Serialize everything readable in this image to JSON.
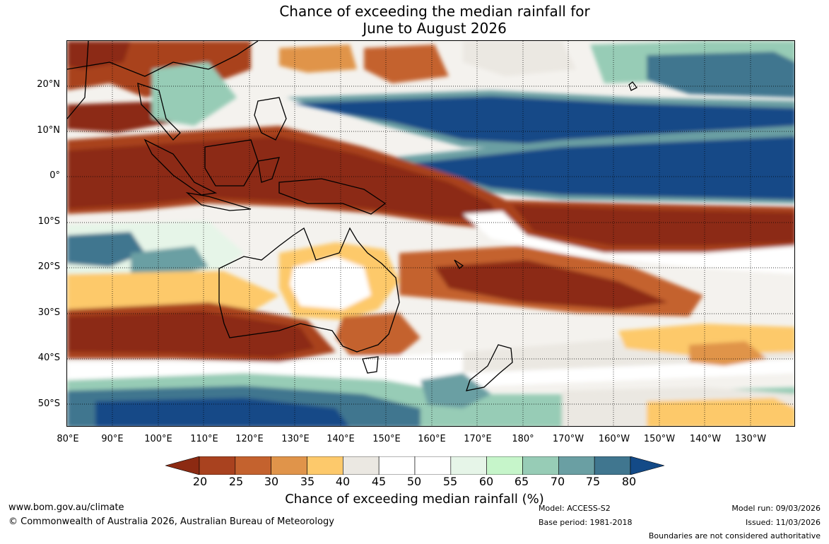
{
  "title": {
    "line1": "Chance of exceeding the median rainfall for",
    "line2": "June to August 2026"
  },
  "map": {
    "lat_labels": [
      "20°N",
      "10°N",
      "0°",
      "10°S",
      "20°S",
      "30°S",
      "40°S",
      "50°S"
    ],
    "lon_labels": [
      "80°E",
      "90°E",
      "100°E",
      "110°E",
      "120°E",
      "130°E",
      "140°E",
      "150°E",
      "160°E",
      "170°E",
      "180°",
      "170°W",
      "160°W",
      "150°W",
      "140°W",
      "130°W"
    ]
  },
  "colorbar": {
    "ticks": [
      "20",
      "25",
      "30",
      "35",
      "40",
      "45",
      "50",
      "55",
      "60",
      "65",
      "70",
      "75",
      "80"
    ],
    "colors": [
      "#8c2a12",
      "#a9421f",
      "#c4622e",
      "#e0944a",
      "#fdc96b",
      "#ebe8e2",
      "#ffffff",
      "#ffffff",
      "#e6f5e8",
      "#c6f5ca",
      "#97ccb6",
      "#6a9fa3",
      "#40768f",
      "#134a87"
    ],
    "label": "Chance of exceeding median rainfall (%)"
  },
  "footer": {
    "url": "www.bom.gov.au/climate",
    "copyright": "© Commonwealth of Australia 2026, Australian Bureau of Meteorology",
    "model": "Model: ACCESS-S2",
    "base_period": "Base period: 1981-2018",
    "model_run": "Model run: 09/03/2026",
    "issued": "Issued: 11/03/2026",
    "disclaimer": "Boundaries are not considered authoritative"
  }
}
